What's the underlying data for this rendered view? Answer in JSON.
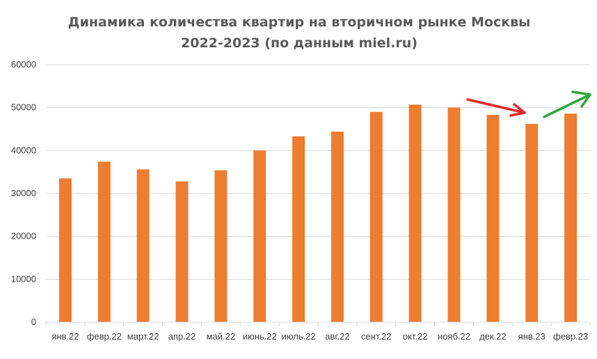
{
  "chart_data": {
    "type": "bar",
    "title_lines": [
      "Динамика количества квартир на вторичном рынке Москвы",
      "2022-2023 (по данным miel.ru)"
    ],
    "categories": [
      "янв.22",
      "февр.22",
      "март.22",
      "апр.22",
      "май.22",
      "июнь.22",
      "июль.22",
      "авг.22",
      "сент.22",
      "окт.22",
      "нояб.22",
      "дек.22",
      "янв.23",
      "февр.23"
    ],
    "values": [
      33500,
      37400,
      35600,
      32800,
      35400,
      40000,
      43300,
      44400,
      49000,
      50700,
      50000,
      48300,
      46200,
      48600
    ],
    "ylim": [
      0,
      60000
    ],
    "yticks": [
      0,
      10000,
      20000,
      30000,
      40000,
      50000,
      60000
    ],
    "grid": true,
    "legend": "none",
    "colors": {
      "bar": "#ED7D31",
      "grid": "#D9D9D9",
      "down_arrow": "#E8262B",
      "up_arrow": "#2EA83A"
    }
  }
}
